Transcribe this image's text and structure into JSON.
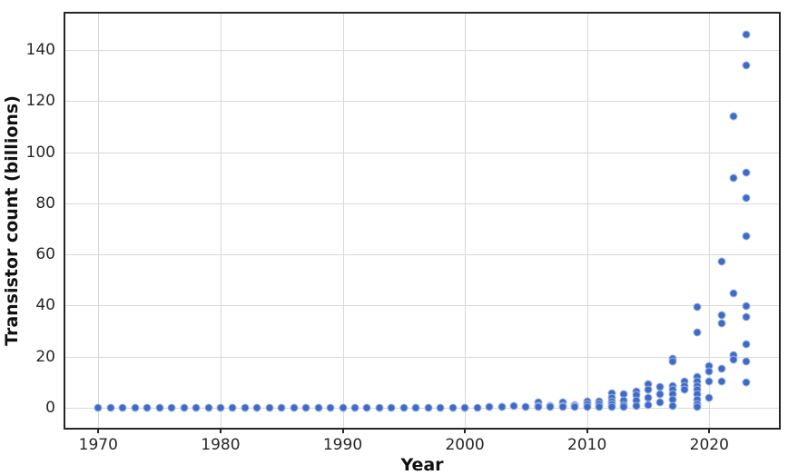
{
  "chart_data": {
    "type": "scatter",
    "title": "",
    "xlabel": "Year",
    "ylabel": "Transistor count (billions)",
    "xlim": [
      1967.3,
      2025.7
    ],
    "ylim": [
      -7.9,
      154.2
    ],
    "x_ticks": [
      1970,
      1980,
      1990,
      2000,
      2010,
      2020
    ],
    "y_ticks": [
      0,
      20,
      40,
      60,
      80,
      100,
      120,
      140
    ],
    "grid": true,
    "legend": "none",
    "marker": "circle",
    "points": [
      {
        "year": 1970,
        "values": [
          2.5e-06
        ]
      },
      {
        "year": 1971,
        "values": [
          2.3e-06
        ]
      },
      {
        "year": 1972,
        "values": [
          3.5e-06
        ]
      },
      {
        "year": 1973,
        "values": [
          2.5e-06
        ]
      },
      {
        "year": 1974,
        "values": [
          8e-06
        ]
      },
      {
        "year": 1975,
        "values": [
          6.5e-06
        ]
      },
      {
        "year": 1976,
        "values": [
          8.5e-06
        ]
      },
      {
        "year": 1977,
        "values": [
          2e-05
        ]
      },
      {
        "year": 1978,
        "values": [
          2.9e-05
        ]
      },
      {
        "year": 1979,
        "values": [
          6.8e-05
        ]
      },
      {
        "year": 1980,
        "values": [
          5.5e-05
        ]
      },
      {
        "year": 1981,
        "values": [
          8e-05
        ]
      },
      {
        "year": 1982,
        "values": [
          0.000134
        ]
      },
      {
        "year": 1983,
        "values": [
          0.00015
        ]
      },
      {
        "year": 1984,
        "values": [
          0.000273
        ]
      },
      {
        "year": 1985,
        "values": [
          0.000275
        ]
      },
      {
        "year": 1986,
        "values": [
          0.00028
        ]
      },
      {
        "year": 1987,
        "values": [
          0.00045
        ]
      },
      {
        "year": 1988,
        "values": [
          0.00075
        ]
      },
      {
        "year": 1989,
        "values": [
          0.0012
        ]
      },
      {
        "year": 1990,
        "values": [
          0.0012
        ]
      },
      {
        "year": 1991,
        "values": [
          0.0013
        ]
      },
      {
        "year": 1992,
        "values": [
          0.0031
        ]
      },
      {
        "year": 1993,
        "values": [
          0.0031
        ]
      },
      {
        "year": 1994,
        "values": [
          0.0058
        ]
      },
      {
        "year": 1995,
        "values": [
          0.0096
        ]
      },
      {
        "year": 1996,
        "values": [
          0.0069
        ]
      },
      {
        "year": 1997,
        "values": [
          0.0088
        ]
      },
      {
        "year": 1998,
        "values": [
          0.0152
        ]
      },
      {
        "year": 1999,
        "values": [
          0.0222
        ]
      },
      {
        "year": 2000,
        "values": [
          0.042
        ]
      },
      {
        "year": 2001,
        "values": [
          0.045
        ]
      },
      {
        "year": 2002,
        "values": [
          0.22
        ]
      },
      {
        "year": 2003,
        "values": [
          0.41
        ]
      },
      {
        "year": 2004,
        "values": [
          0.59
        ]
      },
      {
        "year": 2005,
        "values": [
          0.3,
          0.15
        ]
      },
      {
        "year": 2006,
        "values": [
          1.9,
          0.58,
          0.29
        ]
      },
      {
        "year": 2007,
        "values": [
          0.8,
          0.5,
          0.3
        ]
      },
      {
        "year": 2008,
        "values": [
          2.2,
          0.8,
          0.4
        ]
      },
      {
        "year": 2009,
        "values": [
          0.9,
          0.55,
          0.3
        ]
      },
      {
        "year": 2010,
        "values": [
          2.6,
          1.2,
          0.4
        ]
      },
      {
        "year": 2011,
        "values": [
          2.3,
          1.2,
          0.3
        ]
      },
      {
        "year": 2012,
        "values": [
          5.7,
          3.9,
          2.3,
          1.4,
          0.3
        ]
      },
      {
        "year": 2013,
        "values": [
          5.1,
          2.7,
          1.0,
          0.3
        ]
      },
      {
        "year": 2014,
        "values": [
          6.3,
          4.8,
          2.7,
          0.6
        ]
      },
      {
        "year": 2015,
        "values": [
          9.2,
          7.0,
          4.0,
          1.0
        ]
      },
      {
        "year": 2016,
        "values": [
          8.0,
          5.1,
          2.1
        ]
      },
      {
        "year": 2017,
        "values": [
          19.2,
          18.0,
          8.6,
          6.9,
          5.1,
          3.3,
          0.5
        ]
      },
      {
        "year": 2018,
        "values": [
          10.4,
          8.6,
          6.9
        ]
      },
      {
        "year": 2019,
        "values": [
          39.5,
          29.6,
          12.2,
          10.4,
          8.6,
          6.9,
          5.1,
          3.3,
          1.5,
          0.2
        ]
      },
      {
        "year": 2020,
        "values": [
          16.3,
          14.0,
          10.4,
          3.9
        ]
      },
      {
        "year": 2021,
        "values": [
          57.0,
          36.1,
          33.1,
          15.1,
          10.4
        ]
      },
      {
        "year": 2022,
        "values": [
          114.0,
          90.0,
          44.7,
          20.5,
          18.7
        ]
      },
      {
        "year": 2023,
        "values": [
          146.0,
          134.0,
          92.0,
          82.0,
          67.0,
          39.6,
          35.5,
          24.9,
          18.0,
          9.8
        ]
      }
    ]
  },
  "colors": {
    "marker": "#3e6bc7",
    "grid": "#d9d9d9",
    "spine": "#262626",
    "tick_text": "#262626",
    "label_text": "#111111",
    "background": "#ffffff"
  }
}
